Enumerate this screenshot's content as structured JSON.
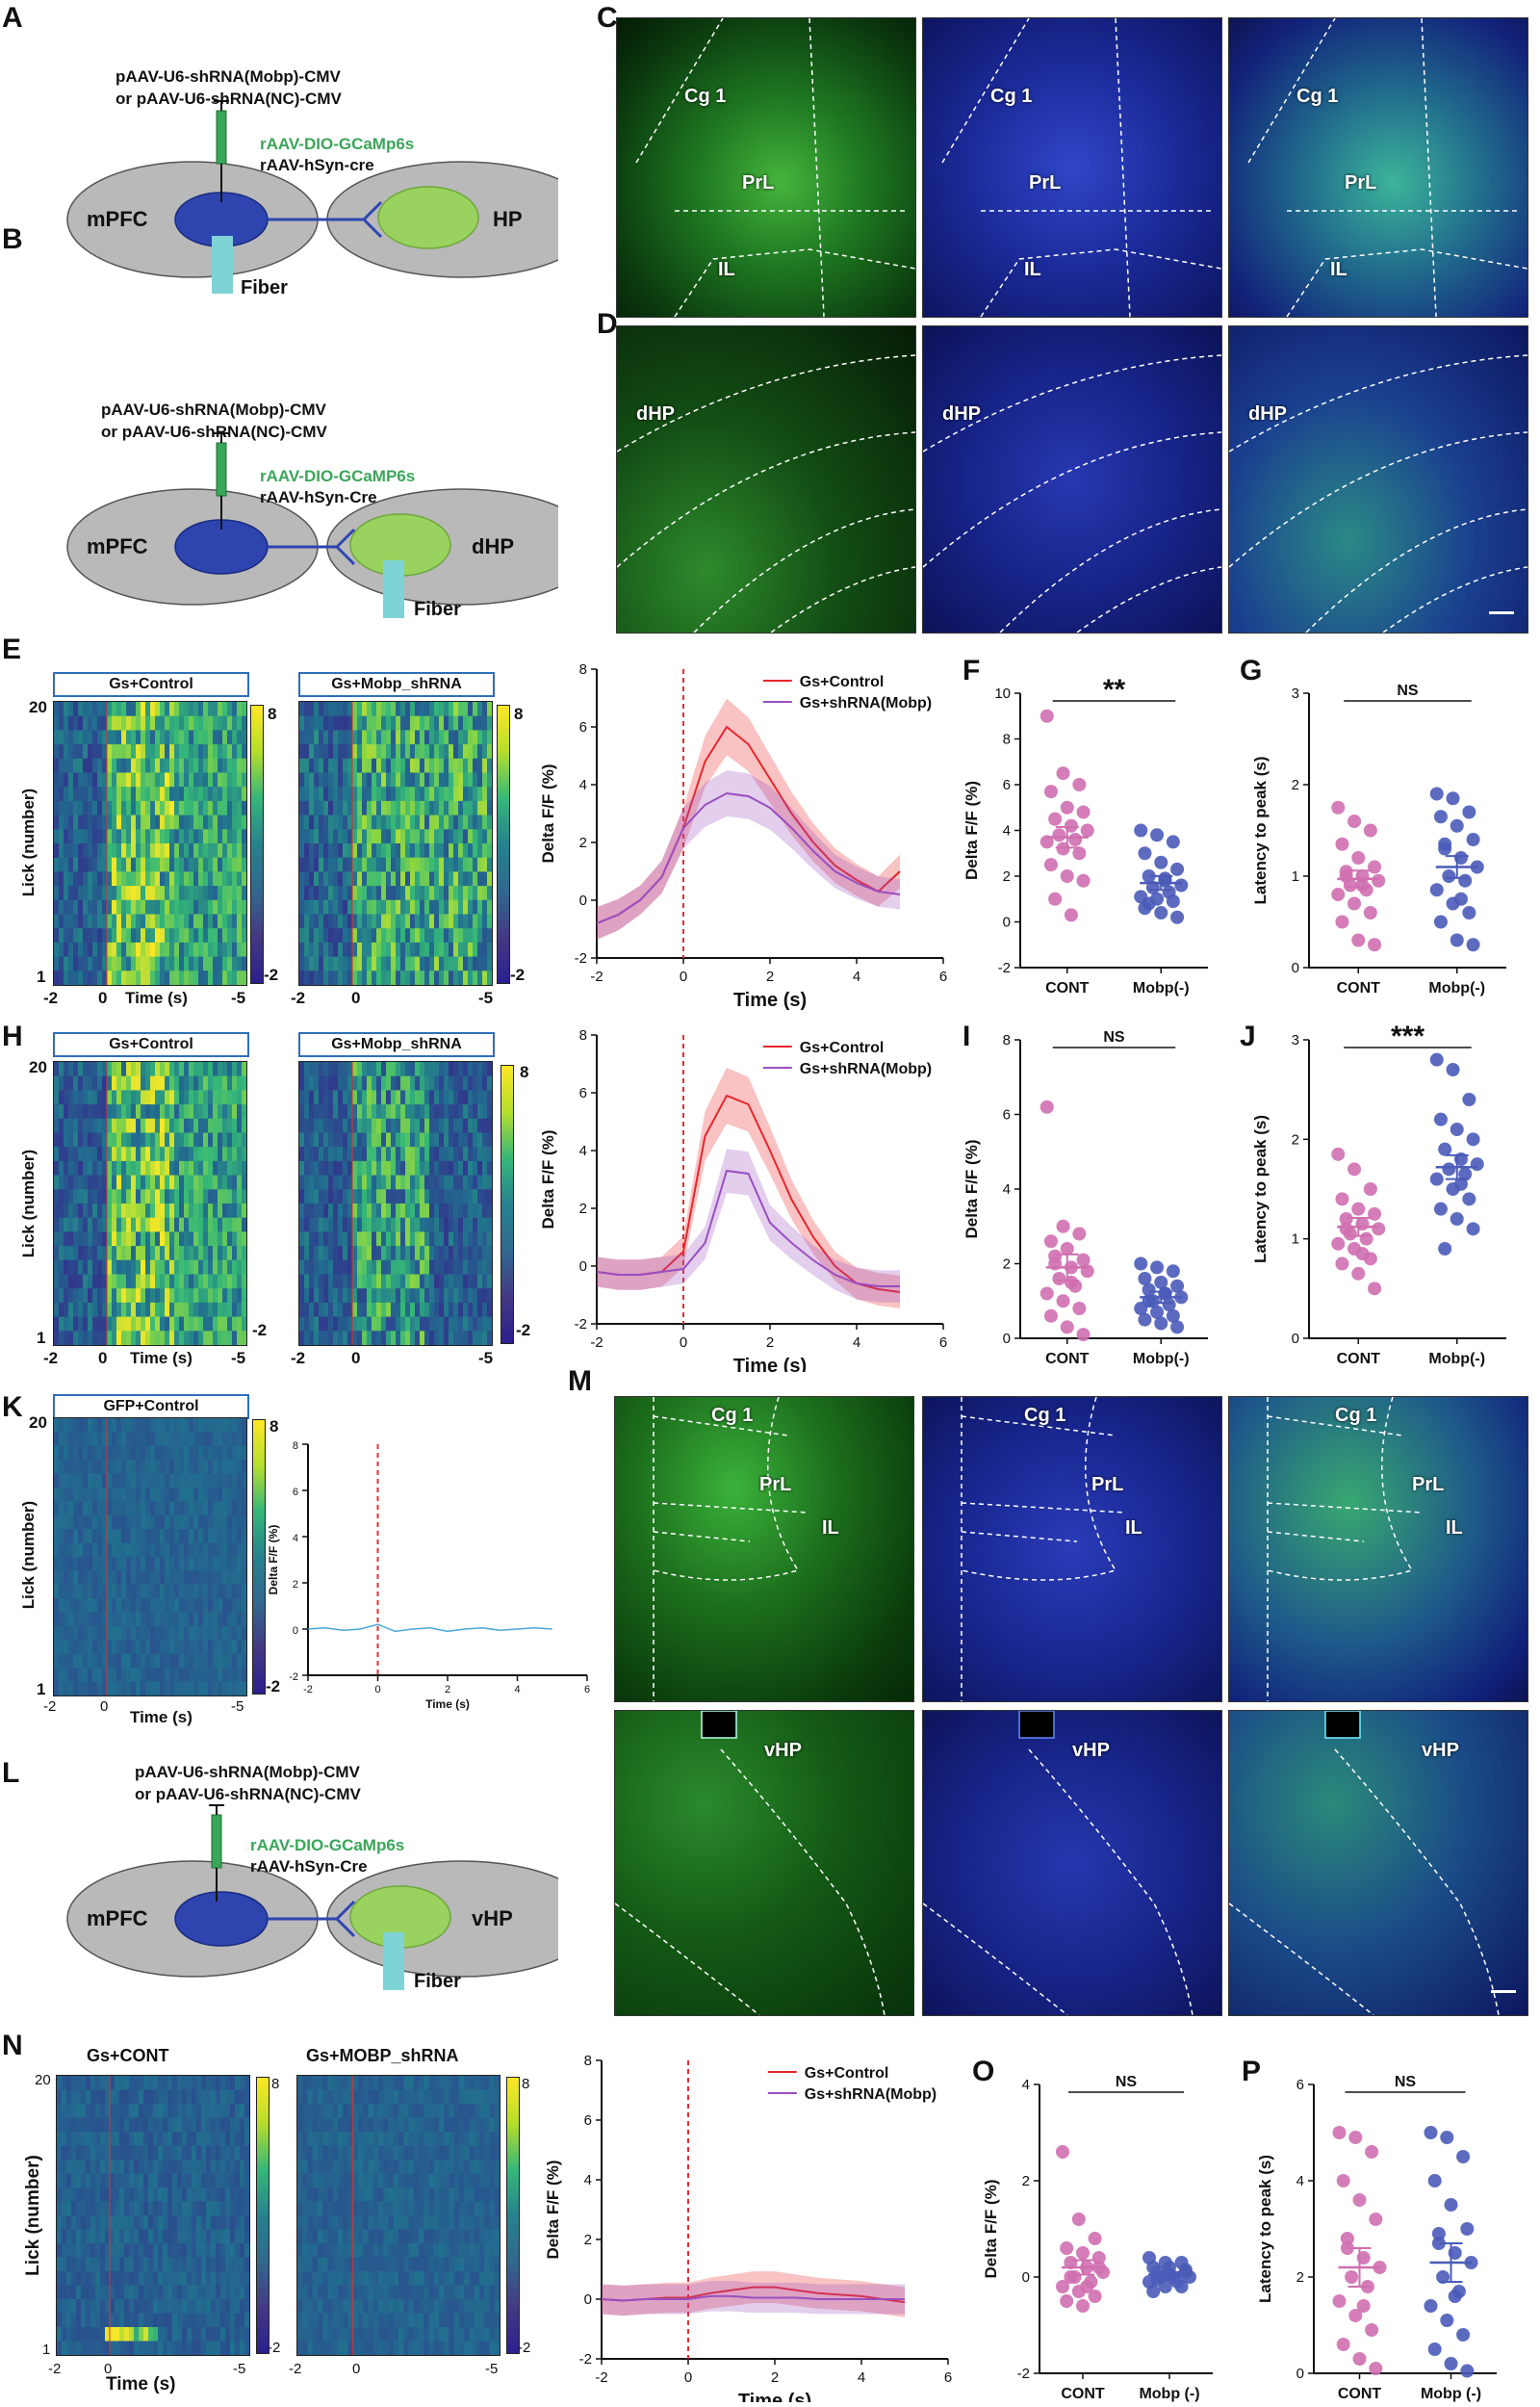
{
  "panels": {
    "A": "A",
    "B": "B",
    "C": "C",
    "D": "D",
    "E": "E",
    "F": "F",
    "G": "G",
    "H": "H",
    "I": "I",
    "J": "J",
    "K": "K",
    "L": "L",
    "M": "M",
    "N": "N",
    "O": "O",
    "P": "P"
  },
  "diagrams": {
    "A": {
      "line1": "pAAV-U6-shRNA(Mobp)-CMV",
      "line2": "or pAAV-U6-shRNA(NC)-CMV",
      "virus1": "rAAV-DIO-GCaMp6s",
      "virus2": "rAAV-hSyn-cre",
      "left": "mPFC",
      "right": "HP",
      "fiber": "Fiber"
    },
    "B": {
      "line1": "pAAV-U6-shRNA(Mobp)-CMV",
      "line2": "or pAAV-U6-shRNA(NC)-CMV",
      "virus1": "rAAV-DIO-GCaMP6s",
      "virus2": "rAAV-hSyn-Cre",
      "left": "mPFC",
      "right": "dHP",
      "fiber": "Fiber"
    },
    "L": {
      "line1": "pAAV-U6-shRNA(Mobp)-CMV",
      "line2": "or pAAV-U6-shRNA(NC)-CMV",
      "virus1": "rAAV-DIO-GCaMp6s",
      "virus2": "rAAV-hSyn-Cre",
      "left": "mPFC",
      "right": "vHP",
      "fiber": "Fiber"
    }
  },
  "micrographs": {
    "C": {
      "cg1": "Cg 1",
      "prl": "PrL",
      "il": "IL"
    },
    "D": {
      "region": "dHP"
    },
    "M_top": {
      "cg1": "Cg 1",
      "prl": "PrL",
      "il": "IL"
    },
    "M_bottom": {
      "region": "vHP"
    }
  },
  "heatmaps": {
    "E_left": "Gs+Control",
    "E_right": "Gs+Mobp_shRNA",
    "H_left": "Gs+Control",
    "H_right": "Gs+Mobp_shRNA",
    "K_left": "GFP+Control",
    "N_left": "Gs+CONT",
    "N_right": "Gs+MOBP_shRNA",
    "ylabel": "Lick (number)",
    "xlabel": "Time (s)",
    "y_top": "20",
    "y_bottom": "1",
    "x_min": "-2",
    "x_zero": "0",
    "x_max": "-5",
    "cbar_max": "8",
    "cbar_min": "-2"
  },
  "chart_data": [
    {
      "id": "E_trace",
      "type": "line",
      "xlabel": "Time (s)",
      "ylabel": "Delta F/F (%)",
      "xlim": [
        -2,
        6
      ],
      "ylim": [
        -2,
        8
      ],
      "xticks": [
        -2,
        0,
        2,
        4,
        6
      ],
      "yticks": [
        -2,
        0,
        2,
        4,
        6,
        8
      ],
      "legend": "top-right",
      "series": [
        {
          "name": "Gs+Control",
          "color": "#e8262b",
          "x": [
            -2,
            -1.5,
            -1,
            -0.5,
            0,
            0.5,
            1,
            1.5,
            2,
            2.5,
            3,
            3.5,
            4,
            4.5,
            5
          ],
          "y": [
            -0.8,
            -0.5,
            0,
            0.8,
            2.5,
            4.8,
            6.0,
            5.4,
            4.2,
            3.0,
            2.0,
            1.2,
            0.7,
            0.3,
            1.0
          ]
        },
        {
          "name": "Gs+shRNA(Mobp)",
          "color": "#9a4ec0",
          "x": [
            -2,
            -1.5,
            -1,
            -0.5,
            0,
            0.5,
            1,
            1.5,
            2,
            2.5,
            3,
            3.5,
            4,
            4.5,
            5
          ],
          "y": [
            -0.8,
            -0.5,
            0,
            0.8,
            2.5,
            3.3,
            3.7,
            3.6,
            3.2,
            2.5,
            1.7,
            1.0,
            0.6,
            0.3,
            0.2
          ]
        }
      ]
    },
    {
      "id": "F_scatter",
      "type": "scatter",
      "title": "**",
      "ylabel": "Delta F/F (%)",
      "categories": [
        "CONT",
        "Mobp(-)"
      ],
      "ylim": [
        -2,
        10
      ],
      "yticks": [
        -2,
        0,
        2,
        4,
        6,
        8,
        10
      ],
      "series": [
        {
          "name": "CONT",
          "color": "#cf6fb0",
          "mean": 3.7,
          "sem": 0.45,
          "values": [
            9.0,
            6.5,
            6.0,
            5.7,
            5.0,
            4.8,
            4.5,
            4.2,
            4.0,
            3.8,
            3.6,
            3.5,
            3.2,
            3.0,
            2.5,
            2.0,
            1.8,
            1.0,
            0.3
          ]
        },
        {
          "name": "Mobp(-)",
          "color": "#4a5bb8",
          "mean": 1.7,
          "sem": 0.3,
          "values": [
            4.0,
            3.8,
            3.5,
            3.0,
            2.6,
            2.3,
            2.0,
            1.8,
            1.6,
            1.5,
            1.3,
            1.1,
            1.0,
            0.9,
            0.6,
            0.4,
            0.2,
            0.8,
            1.9
          ]
        }
      ]
    },
    {
      "id": "G_scatter",
      "type": "scatter",
      "title": "NS",
      "ylabel": "Latency to peak (s)",
      "categories": [
        "CONT",
        "Mobp(-)"
      ],
      "ylim": [
        0,
        3
      ],
      "yticks": [
        0,
        1,
        2,
        3
      ],
      "series": [
        {
          "name": "CONT",
          "color": "#cf6fb0",
          "mean": 0.97,
          "sem": 0.09,
          "values": [
            1.75,
            1.6,
            1.5,
            1.35,
            1.2,
            1.1,
            1.05,
            1.0,
            0.95,
            0.9,
            0.85,
            0.8,
            0.7,
            0.6,
            0.5,
            0.3,
            0.25,
            1.0,
            0.9
          ]
        },
        {
          "name": "Mobp(-)",
          "color": "#4a5bb8",
          "mean": 1.1,
          "sem": 0.12,
          "values": [
            1.9,
            1.85,
            1.7,
            1.65,
            1.55,
            1.4,
            1.3,
            1.2,
            1.1,
            1.0,
            0.95,
            0.85,
            0.7,
            0.6,
            0.5,
            0.3,
            0.25,
            1.35,
            0.75
          ]
        }
      ]
    },
    {
      "id": "H_trace",
      "type": "line",
      "xlabel": "Time (s)",
      "ylabel": "Delta F/F (%)",
      "xlim": [
        -2,
        6
      ],
      "ylim": [
        -2,
        8
      ],
      "xticks": [
        -2,
        0,
        2,
        4,
        6
      ],
      "yticks": [
        -2,
        0,
        2,
        4,
        6,
        8
      ],
      "legend": "top-right",
      "series": [
        {
          "name": "Gs+Control",
          "color": "#e8262b",
          "x": [
            -2,
            -1.5,
            -1,
            -0.5,
            0,
            0.5,
            1,
            1.5,
            2,
            2.5,
            3,
            3.5,
            4,
            4.5,
            5
          ],
          "y": [
            -0.2,
            -0.3,
            -0.3,
            -0.2,
            0.5,
            4.5,
            5.9,
            5.6,
            4.0,
            2.3,
            1.0,
            0,
            -0.6,
            -0.8,
            -0.9
          ]
        },
        {
          "name": "Gs+shRNA(Mobp)",
          "color": "#9a4ec0",
          "x": [
            -2,
            -1.5,
            -1,
            -0.5,
            0,
            0.5,
            1,
            1.5,
            2,
            2.5,
            3,
            3.5,
            4,
            4.5,
            5
          ],
          "y": [
            -0.2,
            -0.3,
            -0.3,
            -0.2,
            -0.1,
            0.8,
            3.3,
            3.2,
            1.5,
            0.8,
            0.2,
            -0.3,
            -0.6,
            -0.7,
            -0.7
          ]
        }
      ]
    },
    {
      "id": "I_scatter",
      "type": "scatter",
      "title": "NS",
      "ylabel": "Delta F/F (%)",
      "categories": [
        "CONT",
        "Mobp(-)"
      ],
      "ylim": [
        0,
        8
      ],
      "yticks": [
        0,
        2,
        4,
        6,
        8
      ],
      "series": [
        {
          "name": "CONT",
          "color": "#cf6fb0",
          "mean": 1.9,
          "sem": 0.35,
          "values": [
            6.2,
            3.0,
            2.8,
            2.6,
            2.4,
            2.1,
            2.0,
            1.9,
            1.8,
            1.6,
            1.4,
            1.2,
            1.0,
            0.8,
            0.6,
            0.3,
            0.1,
            2.2,
            1.5
          ]
        },
        {
          "name": "Mobp(-)",
          "color": "#4a5bb8",
          "mean": 1.1,
          "sem": 0.15,
          "values": [
            2.0,
            1.9,
            1.8,
            1.6,
            1.5,
            1.4,
            1.3,
            1.2,
            1.1,
            1.0,
            0.9,
            0.8,
            0.7,
            0.6,
            0.5,
            0.4,
            0.3,
            1.0,
            1.2
          ]
        }
      ]
    },
    {
      "id": "J_scatter",
      "type": "scatter",
      "title": "***",
      "ylabel": "Latency to peak (s)",
      "categories": [
        "CONT",
        "Mobp(-)"
      ],
      "ylim": [
        0,
        3
      ],
      "yticks": [
        0,
        1,
        2,
        3
      ],
      "series": [
        {
          "name": "CONT",
          "color": "#cf6fb0",
          "mean": 1.12,
          "sem": 0.09,
          "values": [
            1.85,
            1.7,
            1.5,
            1.4,
            1.3,
            1.25,
            1.2,
            1.15,
            1.1,
            1.05,
            1.0,
            0.95,
            0.9,
            0.8,
            0.75,
            0.65,
            0.5,
            1.1,
            0.85
          ]
        },
        {
          "name": "Mobp(-)",
          "color": "#4a5bb8",
          "mean": 1.72,
          "sem": 0.12,
          "values": [
            2.8,
            2.7,
            2.4,
            2.2,
            2.1,
            2.0,
            1.9,
            1.8,
            1.75,
            1.7,
            1.65,
            1.6,
            1.5,
            1.4,
            1.3,
            1.2,
            1.1,
            0.9,
            1.55
          ]
        }
      ]
    },
    {
      "id": "K_trace",
      "type": "line",
      "xlabel": "Time (s)",
      "ylabel": "Delta F/F (%)",
      "xlim": [
        -2,
        6
      ],
      "ylim": [
        -2,
        8
      ],
      "xticks": [
        -2,
        0,
        2,
        4,
        6
      ],
      "yticks": [
        -2,
        0,
        2,
        4,
        6,
        8
      ],
      "series": [
        {
          "name": "GFP+Control",
          "color": "#4aa7d8",
          "x": [
            -2,
            -1.5,
            -1,
            -0.5,
            0,
            0.5,
            1,
            1.5,
            2,
            2.5,
            3,
            3.5,
            4,
            4.5,
            5
          ],
          "y": [
            0,
            0.05,
            -0.05,
            0,
            0.2,
            -0.1,
            0,
            0.05,
            -0.1,
            0,
            0.05,
            -0.05,
            0,
            0.05,
            0
          ]
        }
      ]
    },
    {
      "id": "N_trace",
      "type": "line",
      "xlabel": "Time (s)",
      "ylabel": "Delta F/F (%)",
      "xlim": [
        -2,
        6
      ],
      "ylim": [
        -2,
        8
      ],
      "xticks": [
        -2,
        0,
        2,
        4,
        6
      ],
      "yticks": [
        -2,
        0,
        2,
        4,
        6,
        8
      ],
      "legend": "top-right",
      "series": [
        {
          "name": "Gs+Control",
          "color": "#e8262b",
          "x": [
            -2,
            -1.5,
            -1,
            -0.5,
            0,
            0.5,
            1,
            1.5,
            2,
            2.5,
            3,
            3.5,
            4,
            4.5,
            5
          ],
          "y": [
            0,
            -0.05,
            0,
            0.05,
            0.05,
            0.2,
            0.3,
            0.4,
            0.4,
            0.3,
            0.2,
            0.15,
            0.1,
            0,
            -0.1
          ]
        },
        {
          "name": "Gs+shRNA(Mobp)",
          "color": "#9a4ec0",
          "x": [
            -2,
            -1.5,
            -1,
            -0.5,
            0,
            0.5,
            1,
            1.5,
            2,
            2.5,
            3,
            3.5,
            4,
            4.5,
            5
          ],
          "y": [
            0,
            -0.05,
            0,
            0,
            0,
            0.1,
            0.1,
            0.05,
            0.05,
            0.05,
            0,
            0,
            0,
            0,
            0
          ]
        }
      ]
    },
    {
      "id": "O_scatter",
      "type": "scatter",
      "title": "NS",
      "ylabel": "Delta F/F (%)",
      "categories": [
        "CONT",
        "Mobp (-)"
      ],
      "ylim": [
        -2,
        4
      ],
      "yticks": [
        -2,
        0,
        2,
        4
      ],
      "series": [
        {
          "name": "CONT",
          "color": "#cf6fb0",
          "mean": 0.2,
          "sem": 0.15,
          "values": [
            2.6,
            1.2,
            0.8,
            0.6,
            0.5,
            0.4,
            0.3,
            0.2,
            0.1,
            0,
            -0.1,
            -0.2,
            -0.3,
            -0.4,
            -0.5,
            -0.6,
            0.2,
            0,
            -0.2
          ]
        },
        {
          "name": "Mobp (-)",
          "color": "#4a5bb8",
          "mean": 0.05,
          "sem": 0.05,
          "values": [
            0.4,
            0.3,
            0.3,
            0.2,
            0.2,
            0.1,
            0.1,
            0,
            0,
            0,
            -0.1,
            -0.1,
            -0.2,
            -0.2,
            -0.3,
            0.05,
            0.15,
            -0.05
          ]
        }
      ]
    },
    {
      "id": "P_scatter",
      "type": "scatter",
      "title": "NS",
      "ylabel": "Latency to peak (s)",
      "categories": [
        "CONT",
        "Mobp (-)"
      ],
      "ylim": [
        0,
        6
      ],
      "yticks": [
        0,
        2,
        4,
        6
      ],
      "series": [
        {
          "name": "CONT",
          "color": "#cf6fb0",
          "mean": 2.2,
          "sem": 0.4,
          "values": [
            5.0,
            4.9,
            4.6,
            4.0,
            3.6,
            3.2,
            2.8,
            2.4,
            2.2,
            2.0,
            1.8,
            1.5,
            1.2,
            0.9,
            0.6,
            0.3,
            0.1,
            2.6,
            1.4
          ]
        },
        {
          "name": "Mobp (-)",
          "color": "#4a5bb8",
          "mean": 2.3,
          "sem": 0.4,
          "values": [
            5.0,
            4.9,
            4.5,
            4.0,
            3.5,
            3.0,
            2.7,
            2.5,
            2.3,
            2.0,
            1.7,
            1.4,
            1.1,
            0.8,
            0.5,
            0.2,
            0.05,
            2.9,
            1.6
          ]
        }
      ]
    }
  ]
}
